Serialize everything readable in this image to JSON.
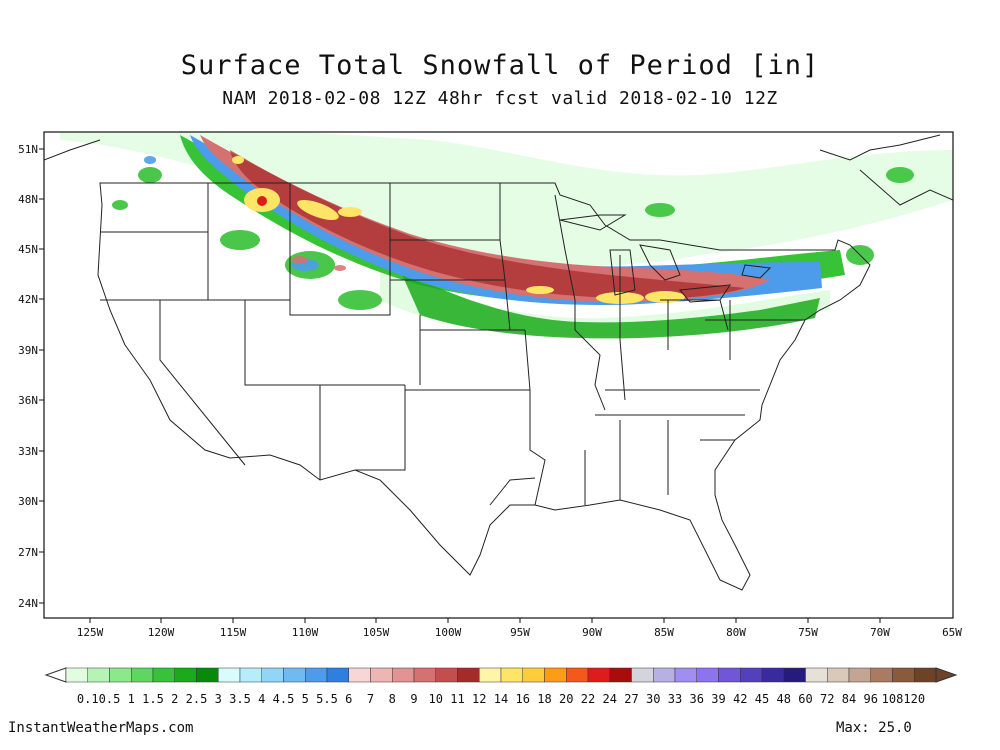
{
  "title": "Surface Total Snowfall of Period [in]",
  "subtitle": "NAM 2018-02-08 12Z 48hr fcst valid 2018-02-10 12Z",
  "lat_labels": [
    "51N",
    "48N",
    "45N",
    "42N",
    "39N",
    "36N",
    "33N",
    "30N",
    "27N",
    "24N"
  ],
  "lon_labels": [
    "125W",
    "120W",
    "115W",
    "110W",
    "105W",
    "100W",
    "95W",
    "90W",
    "85W",
    "80W",
    "75W",
    "70W",
    "65W"
  ],
  "legend": {
    "levels": [
      "0.1",
      "0.5",
      "1",
      "1.5",
      "2",
      "2.5",
      "3",
      "3.5",
      "4",
      "4.5",
      "5",
      "5.5",
      "6",
      "7",
      "8",
      "9",
      "10",
      "11",
      "12",
      "14",
      "16",
      "18",
      "20",
      "22",
      "24",
      "27",
      "30",
      "33",
      "36",
      "39",
      "42",
      "45",
      "48",
      "60",
      "72",
      "84",
      "96",
      "108",
      "120"
    ],
    "colors": [
      "#e2fce2",
      "#b6f4b6",
      "#8be88b",
      "#5fd65f",
      "#37c237",
      "#1aaa1a",
      "#078a07",
      "#d9fbfb",
      "#b7ecfb",
      "#93d5f7",
      "#6fbaf1",
      "#4d9ceb",
      "#2f7fe0",
      "#f6d6d6",
      "#eeb5b5",
      "#e29393",
      "#d57171",
      "#c44e4e",
      "#a52a2a",
      "#fff5a8",
      "#ffe566",
      "#ffcc3b",
      "#ff9c17",
      "#f2591b",
      "#df1c1c",
      "#a80d0d",
      "#d4d4dc",
      "#b7b0e2",
      "#a18ef2",
      "#8d73ee",
      "#7156d8",
      "#5540bc",
      "#3a2aa0",
      "#261a7c",
      "#e6e0d6",
      "#d8c9bb",
      "#c4a493",
      "#a97c62",
      "#8a5a3c",
      "#6e4226"
    ]
  },
  "footer": {
    "site": "InstantWeatherMaps.com",
    "max": "Max:  25.0"
  }
}
